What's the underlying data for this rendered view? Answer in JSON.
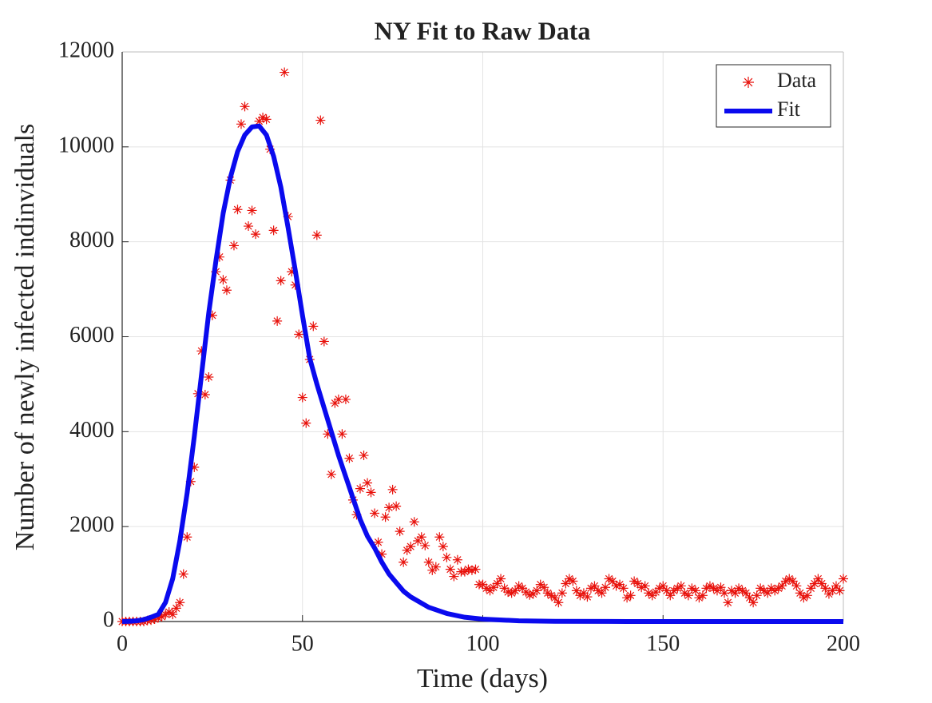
{
  "chart_data": {
    "type": "scatter-line",
    "title": "NY Fit to Raw Data",
    "x_label": "Time (days)",
    "y_label": "Number of newly infected indinviduals",
    "xlim": [
      0,
      200
    ],
    "ylim": [
      0,
      12000
    ],
    "xticks": [
      0,
      50,
      100,
      150,
      200
    ],
    "yticks": [
      0,
      2000,
      4000,
      6000,
      8000,
      10000,
      12000
    ],
    "grid": true,
    "legend": "upper right",
    "series": [
      {
        "name": "Data",
        "kind": "scatter",
        "color": "#e8120c",
        "x": [
          0,
          1,
          2,
          3,
          4,
          5,
          6,
          7,
          8,
          9,
          10,
          11,
          12,
          13,
          14,
          15,
          16,
          17,
          18,
          19,
          20,
          21,
          22,
          23,
          24,
          25,
          26,
          27,
          28,
          29,
          30,
          31,
          32,
          33,
          34,
          35,
          36,
          37,
          38,
          39,
          40,
          41,
          42,
          43,
          44,
          45,
          46,
          47,
          48,
          49,
          50,
          51,
          52,
          53,
          54,
          55,
          56,
          57,
          58,
          59,
          60,
          61,
          62,
          63,
          64,
          65,
          66,
          67,
          68,
          69,
          70,
          71,
          72,
          73,
          74,
          75,
          76,
          77,
          78,
          79,
          80,
          81,
          82,
          83,
          84,
          85,
          86,
          87,
          88,
          89,
          90,
          91,
          92,
          93,
          94,
          95,
          96,
          97,
          98,
          99,
          100,
          101,
          102,
          103,
          104,
          105,
          106,
          107,
          108,
          109,
          110,
          111,
          112,
          113,
          114,
          115,
          116,
          117,
          118,
          119,
          120,
          121,
          122,
          123,
          124,
          125,
          126,
          127,
          128,
          129,
          130,
          131,
          132,
          133,
          134,
          135,
          136,
          137,
          138,
          139,
          140,
          141,
          142,
          143,
          144,
          145,
          146,
          147,
          148,
          149,
          150,
          151,
          152,
          153,
          154,
          155,
          156,
          157,
          158,
          159,
          160,
          161,
          162,
          163,
          164,
          165,
          166,
          167,
          168,
          169,
          170,
          171,
          172,
          173,
          174,
          175,
          176,
          177,
          178,
          179,
          180,
          181,
          182,
          183,
          184,
          185,
          186,
          187,
          188,
          189,
          190,
          191,
          192,
          193,
          194,
          195,
          196,
          197,
          198,
          199,
          200
        ],
        "values": [
          0,
          0,
          0,
          0,
          0,
          0,
          0,
          20,
          30,
          50,
          80,
          100,
          150,
          200,
          150,
          280,
          400,
          1000,
          1780,
          2950,
          3250,
          4800,
          5700,
          4780,
          5150,
          6450,
          7370,
          7680,
          7200,
          6980,
          9300,
          7920,
          8680,
          10480,
          10850,
          8330,
          8660,
          8160,
          10540,
          10620,
          10580,
          9950,
          8240,
          6330,
          7180,
          11570,
          8530,
          7370,
          7090,
          6050,
          4720,
          4180,
          5520,
          6220,
          8140,
          10560,
          5900,
          3950,
          3100,
          4600,
          4680,
          3950,
          4680,
          3440,
          2560,
          2250,
          2800,
          3500,
          2920,
          2720,
          2280,
          1670,
          1420,
          2200,
          2400,
          2780,
          2430,
          1900,
          1250,
          1500,
          1580,
          2100,
          1700,
          1780,
          1600,
          1250,
          1080,
          1150,
          1780,
          1580,
          1350,
          1100,
          950,
          1300,
          1050,
          1050,
          1100,
          1080,
          1100,
          780,
          780,
          700,
          650,
          720,
          800,
          900,
          700,
          620,
          600,
          650,
          750,
          700,
          620,
          560,
          580,
          650,
          780,
          720,
          600,
          550,
          500,
          400,
          600,
          800,
          900,
          850,
          650,
          550,
          600,
          520,
          700,
          750,
          650,
          600,
          720,
          900,
          850,
          750,
          780,
          700,
          500,
          550,
          850,
          800,
          720,
          750,
          600,
          550,
          620,
          700,
          750,
          650,
          550,
          650,
          700,
          750,
          600,
          550,
          700,
          650,
          500,
          550,
          700,
          750,
          700,
          650,
          720,
          600,
          400,
          650,
          600,
          700,
          650,
          600,
          500,
          400,
          550,
          700,
          650,
          600,
          700,
          650,
          700,
          750,
          850,
          900,
          850,
          750,
          600,
          500,
          550,
          700,
          800,
          900,
          800,
          700,
          580,
          650,
          750,
          650,
          900
        ]
      },
      {
        "name": "Fit",
        "kind": "line",
        "color": "#0a0aee",
        "x": [
          0,
          2,
          4,
          6,
          8,
          10,
          12,
          14,
          16,
          18,
          20,
          22,
          24,
          26,
          28,
          30,
          32,
          34,
          36,
          38,
          40,
          42,
          44,
          46,
          48,
          50,
          52,
          54,
          56,
          58,
          60,
          62,
          64,
          66,
          68,
          70,
          72,
          74,
          76,
          78,
          80,
          85,
          90,
          95,
          100,
          110,
          120,
          140,
          160,
          180,
          200
        ],
        "values": [
          0,
          5,
          15,
          40,
          90,
          150,
          400,
          900,
          1700,
          2700,
          3900,
          5200,
          6500,
          7600,
          8600,
          9350,
          9900,
          10250,
          10420,
          10440,
          10250,
          9800,
          9150,
          8300,
          7400,
          6450,
          5550,
          5000,
          4500,
          4000,
          3500,
          3050,
          2600,
          2150,
          1800,
          1550,
          1250,
          1000,
          820,
          640,
          520,
          300,
          170,
          90,
          50,
          15,
          5,
          0,
          0,
          0,
          0
        ]
      }
    ]
  }
}
